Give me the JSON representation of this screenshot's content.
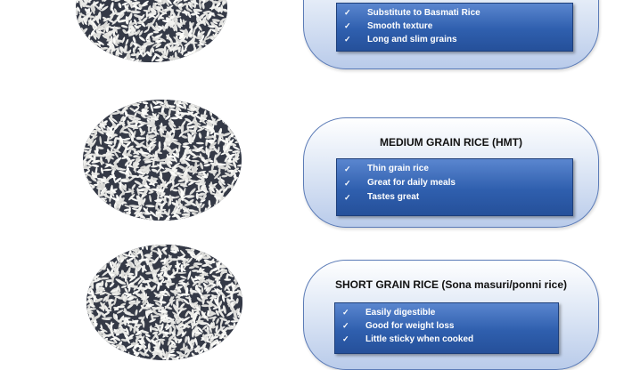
{
  "rice_types": [
    {
      "title": "",
      "features": [
        "Substitute to Basmati Rice",
        "Smooth texture",
        "Long and slim grains"
      ]
    },
    {
      "title": "MEDIUM GRAIN RICE (HMT)",
      "features": [
        "Thin grain rice",
        "Great for daily meals",
        "Tastes great"
      ]
    },
    {
      "title": "SHORT GRAIN RICE (Sona masuri/ponni rice)",
      "features": [
        "Easily digestible",
        "Good for weight loss",
        "Little sticky when cooked"
      ]
    }
  ],
  "check_glyph": "✓",
  "colors": {
    "card_border": "#5b7bb7",
    "feature_box": "#2f5fae",
    "feature_text": "#ffffff",
    "title_text": "#111111"
  }
}
